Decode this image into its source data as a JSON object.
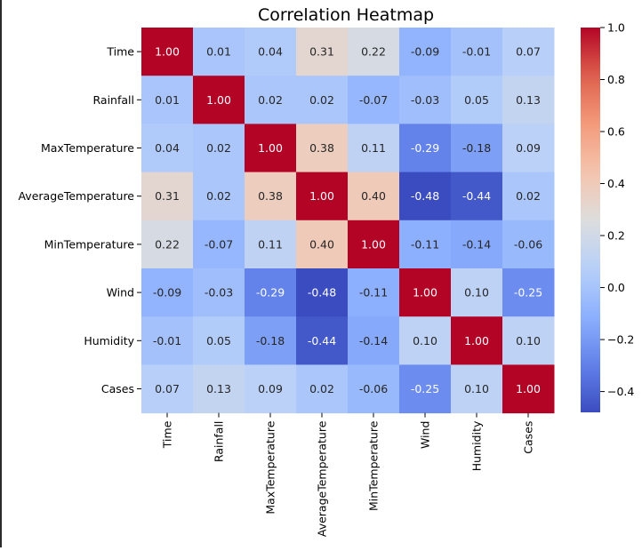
{
  "chart_data": {
    "type": "heatmap",
    "title": "Correlation Heatmap",
    "rows": [
      "Time",
      "Rainfall",
      "MaxTemperature",
      "AverageTemperature",
      "MinTemperature",
      "Wind",
      "Humidity",
      "Cases"
    ],
    "columns": [
      "Time",
      "Rainfall",
      "MaxTemperature",
      "AverageTemperature",
      "MinTemperature",
      "Wind",
      "Humidity",
      "Cases"
    ],
    "values": [
      [
        1.0,
        0.01,
        0.04,
        0.31,
        0.22,
        -0.09,
        -0.01,
        0.07
      ],
      [
        0.01,
        1.0,
        0.02,
        0.02,
        -0.07,
        -0.03,
        0.05,
        0.13
      ],
      [
        0.04,
        0.02,
        1.0,
        0.38,
        0.11,
        -0.29,
        -0.18,
        0.09
      ],
      [
        0.31,
        0.02,
        0.38,
        1.0,
        0.4,
        -0.48,
        -0.44,
        0.02
      ],
      [
        0.22,
        -0.07,
        0.11,
        0.4,
        1.0,
        -0.11,
        -0.14,
        -0.06
      ],
      [
        -0.09,
        -0.03,
        -0.29,
        -0.48,
        -0.11,
        1.0,
        0.1,
        -0.25
      ],
      [
        -0.01,
        0.05,
        -0.18,
        -0.44,
        -0.14,
        0.1,
        1.0,
        0.1
      ],
      [
        0.07,
        0.13,
        0.09,
        0.02,
        -0.06,
        -0.25,
        0.1,
        1.0
      ]
    ],
    "value_format": "2 decimals",
    "colormap": "coolwarm",
    "colorbar": {
      "range": [
        -0.48,
        1.0
      ],
      "ticks": [
        1.0,
        0.8,
        0.6,
        0.4,
        0.2,
        0.0,
        -0.2,
        -0.4
      ],
      "tick_labels": [
        "1.0",
        "0.8",
        "0.6",
        "0.4",
        "0.2",
        "0.0",
        "−0.2",
        "−0.4"
      ]
    },
    "xlabel": "",
    "ylabel": ""
  }
}
